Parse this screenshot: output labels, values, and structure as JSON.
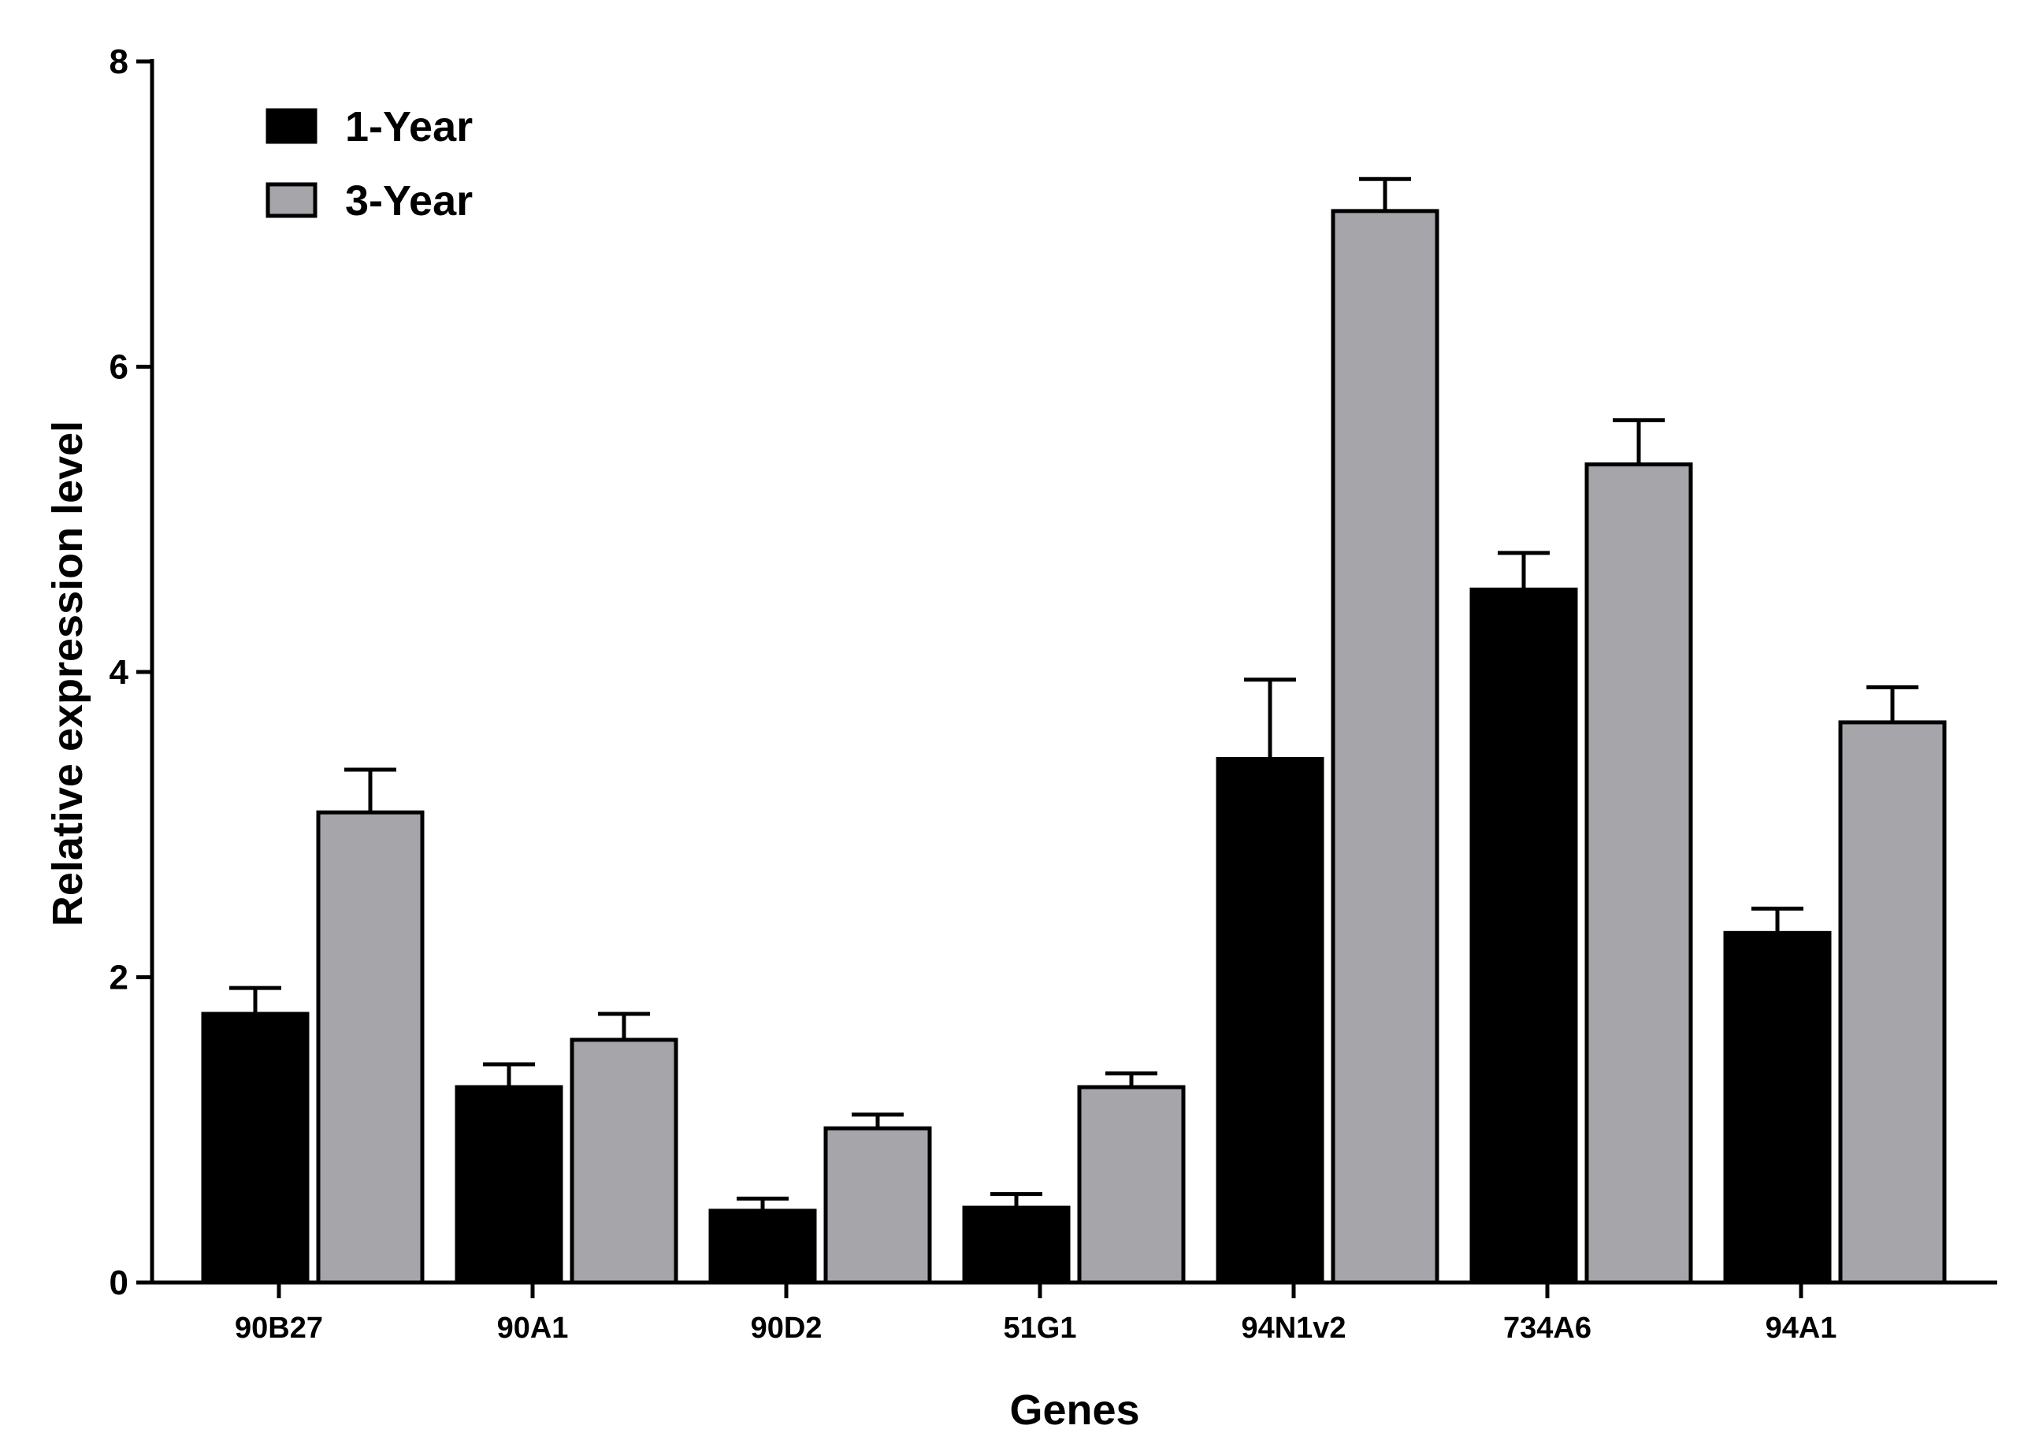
{
  "chart_data": {
    "type": "bar",
    "title": "",
    "xlabel": "Genes",
    "ylabel": "Relative expression level",
    "ylim": [
      0,
      8
    ],
    "yticks": [
      0,
      2,
      4,
      6,
      8
    ],
    "ytick_labels": [
      "0",
      "2",
      "4",
      "6",
      "8"
    ],
    "grid": false,
    "legend_position": "top-left",
    "categories": [
      "90B27",
      "90A1",
      "90D2",
      "51G1",
      "94N1v2",
      "734A6",
      "94A1"
    ],
    "series": [
      {
        "name": "1-Year",
        "color": "#000000",
        "values": [
          1.76,
          1.28,
          0.47,
          0.49,
          3.43,
          4.54,
          2.29
        ],
        "errors": [
          0.17,
          0.15,
          0.08,
          0.09,
          0.52,
          0.24,
          0.16
        ]
      },
      {
        "name": "3-Year",
        "color": "#a5a5aa",
        "values": [
          3.08,
          1.59,
          1.01,
          1.28,
          7.02,
          5.36,
          3.67
        ],
        "errors": [
          0.28,
          0.17,
          0.09,
          0.09,
          0.21,
          0.29,
          0.23
        ]
      }
    ]
  }
}
